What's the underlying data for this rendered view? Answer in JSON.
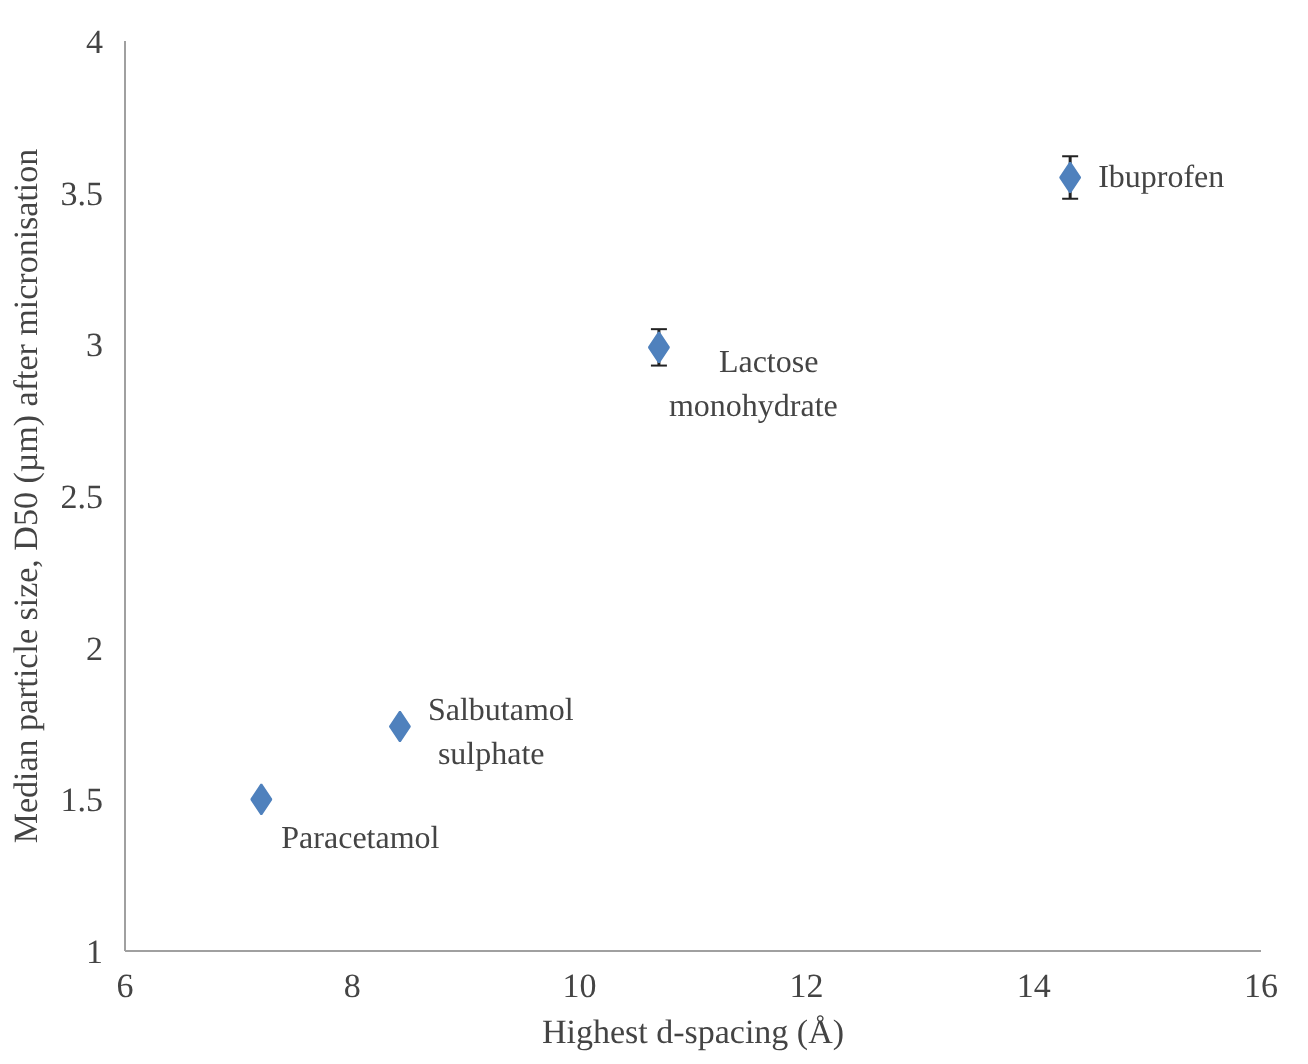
{
  "chart_data": {
    "type": "scatter",
    "xlabel": "Highest d-spacing (Å)",
    "ylabel": "Median particle size, D50 (µm) after micronisation",
    "x": [
      7.2,
      8.42,
      10.7,
      14.32
    ],
    "values": [
      1.5,
      1.74,
      2.99,
      3.55
    ],
    "errors": [
      null,
      null,
      0.06,
      0.07
    ],
    "color": "#4f81bd",
    "marker": "diamond",
    "value_labels": [
      "Paracetamol",
      "Salbutamol\nsulphate",
      "Lactose\nmonohydrate",
      "Ibuprofen"
    ],
    "xlim": [
      6,
      16
    ],
    "ylim": [
      1,
      4
    ],
    "xticks": [
      6,
      8,
      10,
      12,
      14,
      16
    ],
    "yticks": [
      1,
      1.5,
      2,
      2.5,
      3,
      3.5,
      4
    ],
    "grid": false
  }
}
